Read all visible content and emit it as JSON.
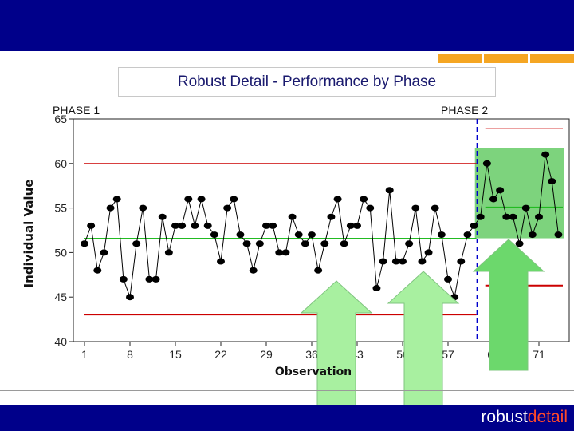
{
  "header": {
    "title": "Robust Detail - Performance by Phase"
  },
  "footer": {
    "brand_prefix": "robust",
    "brand_suffix": "detail"
  },
  "colors": {
    "band": "#00008a",
    "accent": "#f5a623",
    "data_line": "#000000",
    "phase2_highlight": "#5cc85c",
    "limit_line": "#cc0000",
    "center_line": "#22bb22",
    "phase_divider": "#0000cc",
    "arrow_light": "#a8f0a0",
    "arrow_dark": "#6cd86c"
  },
  "chart_data": {
    "type": "line",
    "title": "",
    "xlabel": "Observation",
    "ylabel": "Individual Value",
    "xlim": [
      0,
      74
    ],
    "ylim": [
      40,
      65
    ],
    "x_ticks": [
      1,
      8,
      15,
      22,
      29,
      36,
      43,
      50,
      57,
      64,
      71
    ],
    "y_ticks": [
      40,
      45,
      50,
      55,
      60,
      65
    ],
    "grid": false,
    "phases": [
      {
        "label": "PHASE 1",
        "start": 1,
        "end": 61,
        "center": 51.6,
        "ucl": 60.0,
        "lcl": 43.0
      },
      {
        "label": "PHASE 2",
        "start": 62,
        "end": 74,
        "center": 55.1,
        "ucl": 63.9,
        "lcl": 46.3
      }
    ],
    "phase_divider_x": 61.5,
    "series": [
      {
        "x": [
          1,
          2,
          3,
          4,
          5,
          6,
          7,
          8,
          9,
          10,
          11,
          12,
          13,
          14,
          15,
          16,
          17,
          18,
          19,
          20,
          21,
          22,
          23,
          24,
          25,
          26,
          27,
          28,
          29,
          30,
          31,
          32,
          33,
          34,
          35,
          36,
          37,
          38,
          39,
          40,
          41,
          42,
          43,
          44,
          45,
          46,
          47,
          48,
          49,
          50,
          51,
          52,
          53,
          54,
          55,
          56,
          57,
          58,
          59,
          60,
          61,
          62,
          63,
          64,
          65,
          66,
          67,
          68,
          69,
          70,
          71,
          72,
          73,
          74
        ],
        "values": [
          51,
          53,
          48,
          50,
          55,
          56,
          47,
          45,
          51,
          55,
          47,
          47,
          54,
          50,
          53,
          53,
          56,
          53,
          56,
          53,
          52,
          49,
          55,
          56,
          52,
          51,
          48,
          51,
          53,
          53,
          50,
          50,
          54,
          52,
          51,
          52,
          48,
          51,
          54,
          56,
          51,
          53,
          53,
          56,
          55,
          46,
          49,
          57,
          49,
          49,
          51,
          55,
          49,
          50,
          55,
          52,
          47,
          45,
          49,
          52,
          53,
          54,
          60,
          56,
          57,
          54,
          54,
          51,
          55,
          52,
          54,
          61,
          58,
          52
        ]
      }
    ]
  }
}
